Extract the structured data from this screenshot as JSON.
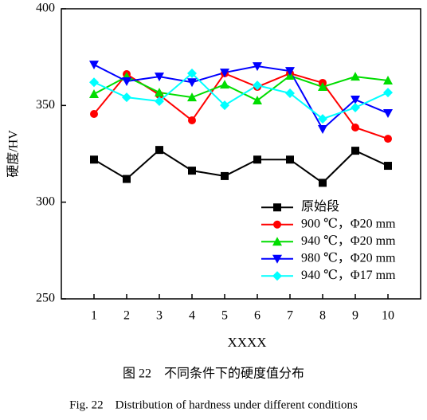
{
  "chart_data": {
    "type": "line",
    "x_label": "XXXX",
    "y_label": "硬度/HV",
    "caption_cn": "图 22　不同条件下的硬度值分布",
    "caption_en": "Fig. 22　Distribution of hardness under different conditions",
    "x": [
      1,
      2,
      3,
      4,
      5,
      6,
      7,
      8,
      9,
      10
    ],
    "xlim": [
      0,
      11
    ],
    "xticks": [
      1,
      2,
      3,
      4,
      5,
      6,
      7,
      8,
      9,
      10
    ],
    "ylim": [
      250,
      400
    ],
    "yticks": [
      250,
      300,
      350,
      400
    ],
    "legend": "lower right",
    "series": [
      {
        "name": "原始段",
        "color": "#000000",
        "marker": "square",
        "values": [
          322,
          312,
          327,
          316.3,
          313.5,
          322,
          322,
          310,
          326.6,
          318.8
        ]
      },
      {
        "name": "900 ℃，Φ20 mm",
        "color": "#ff0000",
        "marker": "circle",
        "values": [
          345.6,
          366.2,
          355.5,
          342.3,
          366.6,
          359.6,
          366.6,
          361.7,
          338.6,
          332.8
        ]
      },
      {
        "name": "940 ℃，Φ20 mm",
        "color": "#00dd00",
        "marker": "triangle-up",
        "values": [
          355.9,
          364.9,
          356.7,
          354.2,
          360.8,
          352.6,
          365.4,
          359.6,
          364.9,
          362.9
        ]
      },
      {
        "name": "980 ℃，Φ20 mm",
        "color": "#0000ff",
        "marker": "triangle-down",
        "values": [
          371.1,
          362.5,
          364.9,
          362,
          367,
          370.3,
          367.8,
          337.8,
          353,
          346
        ]
      },
      {
        "name": "940 ℃，Φ17 mm",
        "color": "#00ffff",
        "marker": "diamond",
        "values": [
          362,
          354.2,
          352.2,
          366.6,
          350.1,
          360.4,
          356.3,
          343.1,
          348.9,
          356.7
        ]
      }
    ]
  }
}
